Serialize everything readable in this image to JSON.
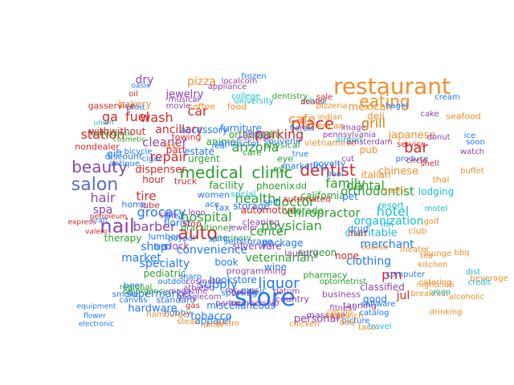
{
  "words": [
    {
      "text": "restaurant",
      "color": "#f28e2b"
    },
    {
      "text": "store",
      "color": "#1f77ff"
    },
    {
      "text": "eating",
      "color": "#f28e2b"
    },
    {
      "text": "salon",
      "color": "#5a6acf"
    },
    {
      "text": "medical",
      "color": "#2ca02c"
    },
    {
      "text": "clinic",
      "color": "#2ca02c"
    },
    {
      "text": "beauty",
      "color": "#8e44ad"
    },
    {
      "text": "place",
      "color": "#d62728"
    },
    {
      "text": "nail",
      "color": "#8e44ad"
    },
    {
      "text": "auto",
      "color": "#d62728"
    },
    {
      "text": "grill",
      "color": "#e07b00"
    },
    {
      "text": "dentist",
      "color": "#d62728"
    },
    {
      "text": "liquor",
      "color": "#1f77ff"
    },
    {
      "text": "wash",
      "color": "#d62728"
    },
    {
      "text": "fuel",
      "color": "#d62728"
    },
    {
      "text": "ga",
      "color": "#d62728"
    },
    {
      "text": "bar",
      "color": "#d62728"
    },
    {
      "text": "physician",
      "color": "#2ca02c"
    },
    {
      "text": "hotel",
      "color": "#17becf"
    },
    {
      "text": "cafe",
      "color": "#f28e2b"
    },
    {
      "text": "car",
      "color": "#d62728"
    },
    {
      "text": "dry",
      "color": "#8e44ad"
    },
    {
      "text": "pizza",
      "color": "#f28e2b"
    },
    {
      "text": "jewelry",
      "color": "#8e44ad"
    },
    {
      "text": "station",
      "color": "#d62728"
    },
    {
      "text": "cleaner",
      "color": "#8e44ad"
    },
    {
      "text": "repair",
      "color": "#d62728"
    },
    {
      "text": "hair",
      "color": "#8e44ad"
    },
    {
      "text": "spa",
      "color": "#8e44ad"
    },
    {
      "text": "barber",
      "color": "#8e44ad"
    },
    {
      "text": "grocery",
      "color": "#1f77ff"
    },
    {
      "text": "tire",
      "color": "#d62728"
    },
    {
      "text": "health",
      "color": "#2ca02c"
    },
    {
      "text": "hospital",
      "color": "#2ca02c"
    },
    {
      "text": "doctor",
      "color": "#2ca02c"
    },
    {
      "text": "family",
      "color": "#2ca02c"
    },
    {
      "text": "arizona",
      "color": "#2ca02c"
    },
    {
      "text": "parking",
      "color": "#d62728"
    },
    {
      "text": "chiropractor",
      "color": "#2ca02c"
    },
    {
      "text": "orthodontist",
      "color": "#2ca02c"
    },
    {
      "text": "dental",
      "color": "#2ca02c"
    },
    {
      "text": "center",
      "color": "#2ca02c"
    },
    {
      "text": "market",
      "color": "#1f77ff"
    },
    {
      "text": "supply",
      "color": "#1f77ff"
    },
    {
      "text": "specialty",
      "color": "#1f77ff"
    },
    {
      "text": "convenience",
      "color": "#1f77ff"
    },
    {
      "text": "shop",
      "color": "#1f77ff"
    },
    {
      "text": "hardware",
      "color": "#1f77ff"
    },
    {
      "text": "supermarket",
      "color": "#1f77ff"
    },
    {
      "text": "clothing",
      "color": "#1f77ff"
    },
    {
      "text": "pm",
      "color": "#d62728"
    },
    {
      "text": "jul",
      "color": "#d62728"
    },
    {
      "text": "merchant",
      "color": "#1f77ff"
    },
    {
      "text": "organization",
      "color": "#17becf"
    },
    {
      "text": "charitable",
      "color": "#17becf"
    },
    {
      "text": "bakery",
      "color": "#f28e2b"
    },
    {
      "text": "coffee",
      "color": "#f28e2b"
    },
    {
      "text": "food",
      "color": "#f28e2b"
    },
    {
      "text": "mexican",
      "color": "#f28e2b"
    },
    {
      "text": "american",
      "color": "#f28e2b"
    },
    {
      "text": "chinese",
      "color": "#f28e2b"
    },
    {
      "text": "italian",
      "color": "#f28e2b"
    },
    {
      "text": "sushi",
      "color": "#f28e2b"
    },
    {
      "text": "thai",
      "color": "#f28e2b"
    },
    {
      "text": "buffet",
      "color": "#f28e2b"
    },
    {
      "text": "japanese",
      "color": "#f28e2b"
    },
    {
      "text": "seafood",
      "color": "#f28e2b"
    },
    {
      "text": "deli",
      "color": "#f28e2b"
    },
    {
      "text": "pub",
      "color": "#f28e2b"
    },
    {
      "text": "resort",
      "color": "#17becf"
    },
    {
      "text": "lodging",
      "color": "#17becf"
    },
    {
      "text": "motel",
      "color": "#17becf"
    },
    {
      "text": "inn",
      "color": "#17becf"
    },
    {
      "text": "golf",
      "color": "#f28e2b"
    },
    {
      "text": "club",
      "color": "#f28e2b"
    },
    {
      "text": "course",
      "color": "#f28e2b"
    },
    {
      "text": "theater",
      "color": "#f28e2b"
    },
    {
      "text": "computer",
      "color": "#1f77ff"
    },
    {
      "text": "classified",
      "color": "#8e44ad"
    },
    {
      "text": "good",
      "color": "#1f77ff"
    },
    {
      "text": "personal",
      "color": "#8e44ad"
    },
    {
      "text": "business",
      "color": "#8e44ad"
    },
    {
      "text": "pharmacy",
      "color": "#2ca02c"
    },
    {
      "text": "optometrist",
      "color": "#2ca02c"
    },
    {
      "text": "veterinarian",
      "color": "#2ca02c"
    },
    {
      "text": "veterinary",
      "color": "#2ca02c"
    },
    {
      "text": "practitioner",
      "color": "#2ca02c"
    },
    {
      "text": "care",
      "color": "#2ca02c"
    },
    {
      "text": "storage",
      "color": "#1f77ff"
    },
    {
      "text": "self",
      "color": "#1f77ff"
    },
    {
      "text": "selfstorage",
      "color": "#1f77ff"
    },
    {
      "text": "automotive",
      "color": "#d62728"
    },
    {
      "text": "automated",
      "color": "#d62728"
    },
    {
      "text": "dispenser",
      "color": "#d62728"
    },
    {
      "text": "ancillary",
      "color": "#d62728"
    },
    {
      "text": "gasservice",
      "color": "#d62728"
    },
    {
      "text": "withwithout",
      "color": "#d62728"
    },
    {
      "text": "nondealer",
      "color": "#d62728"
    },
    {
      "text": "gift",
      "color": "#1f77ff"
    },
    {
      "text": "hour",
      "color": "#d62728"
    },
    {
      "text": "fast",
      "color": "#f28e2b"
    },
    {
      "text": "part",
      "color": "#d62728"
    },
    {
      "text": "accessory",
      "color": "#1f77ff"
    },
    {
      "text": "furniture",
      "color": "#1f77ff"
    },
    {
      "text": "florist",
      "color": "#1f77ff"
    },
    {
      "text": "book",
      "color": "#1f77ff"
    },
    {
      "text": "wine",
      "color": "#1f77ff"
    },
    {
      "text": "beer",
      "color": "#1f77ff"
    },
    {
      "text": "package",
      "color": "#1f77ff"
    },
    {
      "text": "miscellaneous",
      "color": "#1f77ff"
    },
    {
      "text": "tobacco",
      "color": "#1f77ff"
    },
    {
      "text": "apparel",
      "color": "#1f77ff"
    },
    {
      "text": "bookstore",
      "color": "#1f77ff"
    },
    {
      "text": "sporting",
      "color": "#1f77ff"
    },
    {
      "text": "hobby",
      "color": "#1f77ff"
    },
    {
      "text": "music",
      "color": "#1f77ff"
    },
    {
      "text": "none",
      "color": "#d62728"
    },
    {
      "text": "fitness",
      "color": "#8e44ad"
    },
    {
      "text": "tanning",
      "color": "#8e44ad"
    },
    {
      "text": "massage",
      "color": "#8e44ad"
    },
    {
      "text": "surgeon",
      "color": "#2ca02c"
    },
    {
      "text": "pediatric",
      "color": "#2ca02c"
    },
    {
      "text": "therapy",
      "color": "#2ca02c"
    },
    {
      "text": "urgent",
      "color": "#2ca02c"
    },
    {
      "text": "orthopedic",
      "color": "#2ca02c"
    },
    {
      "text": "physical",
      "color": "#2ca02c"
    },
    {
      "text": "animal",
      "color": "#2ca02c"
    },
    {
      "text": "eye",
      "color": "#2ca02c"
    },
    {
      "text": "facility",
      "color": "#2ca02c"
    },
    {
      "text": "social",
      "color": "#17becf"
    },
    {
      "text": "california",
      "color": "#2ca02c"
    },
    {
      "text": "colorado",
      "color": "#2ca02c"
    },
    {
      "text": "phoenix",
      "color": "#2ca02c"
    },
    {
      "text": "dd",
      "color": "#2ca02c"
    },
    {
      "text": "md",
      "color": "#2ca02c"
    },
    {
      "text": "drug",
      "color": "#1f77ff"
    },
    {
      "text": "pet",
      "color": "#1f77ff"
    },
    {
      "text": "contractor",
      "color": "#1f77ff"
    },
    {
      "text": "women",
      "color": "#1f77ff"
    },
    {
      "text": "pool",
      "color": "#1f77ff"
    },
    {
      "text": "novelty",
      "color": "#1f77ff"
    },
    {
      "text": "souvenir",
      "color": "#1f77ff"
    },
    {
      "text": "cleaning",
      "color": "#8e44ad"
    },
    {
      "text": "silverware",
      "color": "#8e44ad"
    },
    {
      "text": "jeweler",
      "color": "#8e44ad"
    },
    {
      "text": "clock",
      "color": "#8e44ad"
    },
    {
      "text": "laundry",
      "color": "#8e44ad"
    },
    {
      "text": "skin",
      "color": "#8e44ad"
    },
    {
      "text": "stop",
      "color": "#d62728"
    },
    {
      "text": "truck",
      "color": "#d62728"
    },
    {
      "text": "lube",
      "color": "#d62728"
    },
    {
      "text": "estate",
      "color": "#1f77ff"
    },
    {
      "text": "real",
      "color": "#1f77ff"
    },
    {
      "text": "towing",
      "color": "#d62728"
    },
    {
      "text": "oil",
      "color": "#d62728"
    },
    {
      "text": "print",
      "color": "#1f77ff"
    },
    {
      "text": "antique",
      "color": "#1f77ff"
    },
    {
      "text": "discount",
      "color": "#1f77ff"
    },
    {
      "text": "cigar",
      "color": "#1f77ff"
    },
    {
      "text": "bicycle",
      "color": "#1f77ff"
    },
    {
      "text": "home",
      "color": "#1f77ff"
    },
    {
      "text": "misc",
      "color": "#1f77ff"
    },
    {
      "text": "paypal",
      "color": "#1f77ff"
    },
    {
      "text": "tax",
      "color": "#1f77ff"
    },
    {
      "text": "ace",
      "color": "#1f77ff"
    },
    {
      "text": "spirit",
      "color": "#1f77ff"
    },
    {
      "text": "lumber",
      "color": "#1f77ff"
    },
    {
      "text": "feed",
      "color": "#1f77ff"
    },
    {
      "text": "outdoor",
      "color": "#1f77ff"
    },
    {
      "text": "standard",
      "color": "#1f77ff"
    },
    {
      "text": "google",
      "color": "#8e44ad"
    },
    {
      "text": "googlecom",
      "color": "#8e44ad"
    },
    {
      "text": "magazine",
      "color": "#8e44ad"
    },
    {
      "text": "athletic",
      "color": "#8e44ad"
    },
    {
      "text": "membership",
      "color": "#8e44ad"
    },
    {
      "text": "programming",
      "color": "#8e44ad"
    },
    {
      "text": "rec",
      "color": "#8e44ad"
    },
    {
      "text": "country",
      "color": "#8e44ad"
    },
    {
      "text": "datum",
      "color": "#8e44ad"
    },
    {
      "text": "hamburger",
      "color": "#f28e2b"
    },
    {
      "text": "steak",
      "color": "#f28e2b"
    },
    {
      "text": "bistro",
      "color": "#f28e2b"
    },
    {
      "text": "diner",
      "color": "#f28e2b"
    },
    {
      "text": "chicken",
      "color": "#f28e2b"
    },
    {
      "text": "sandwich",
      "color": "#f28e2b"
    },
    {
      "text": "taco",
      "color": "#f28e2b"
    },
    {
      "text": "breakfast",
      "color": "#f28e2b"
    },
    {
      "text": "catering",
      "color": "#f28e2b"
    },
    {
      "text": "kitchen",
      "color": "#f28e2b"
    },
    {
      "text": "lounge",
      "color": "#f28e2b"
    },
    {
      "text": "bbq",
      "color": "#f28e2b"
    },
    {
      "text": "nightclub",
      "color": "#f28e2b"
    },
    {
      "text": "drinking",
      "color": "#f28e2b"
    },
    {
      "text": "beverage",
      "color": "#f28e2b"
    },
    {
      "text": "alcoholic",
      "color": "#f28e2b"
    },
    {
      "text": "vietnamese",
      "color": "#f28e2b"
    },
    {
      "text": "indian",
      "color": "#f28e2b"
    },
    {
      "text": "pizzeria",
      "color": "#f28e2b"
    },
    {
      "text": "airport",
      "color": "#17becf"
    },
    {
      "text": "school",
      "color": "#17becf"
    },
    {
      "text": "university",
      "color": "#17becf"
    },
    {
      "text": "college",
      "color": "#17becf"
    },
    {
      "text": "dentistry",
      "color": "#2ca02c"
    },
    {
      "text": "sale",
      "color": "#d62728"
    },
    {
      "text": "dealer",
      "color": "#d62728"
    },
    {
      "text": "service",
      "color": "#d62728"
    },
    {
      "text": "cake",
      "color": "#8e44ad"
    },
    {
      "text": "donut",
      "color": "#8e44ad"
    },
    {
      "text": "watch",
      "color": "#8e44ad"
    },
    {
      "text": "soon",
      "color": "#1f77ff"
    },
    {
      "text": "ice",
      "color": "#1f77ff"
    },
    {
      "text": "cream",
      "color": "#1f77ff"
    },
    {
      "text": "bagel",
      "color": "#1f77ff"
    },
    {
      "text": "frozen",
      "color": "#1f77ff"
    },
    {
      "text": "pennsylvania",
      "color": "#8e44ad"
    },
    {
      "text": "amsterdam",
      "color": "#8e44ad"
    },
    {
      "text": "image",
      "color": "#8e44ad"
    },
    {
      "text": "cut",
      "color": "#8e44ad"
    },
    {
      "text": "produce",
      "color": "#1f77ff"
    },
    {
      "text": "florals",
      "color": "#1f77ff"
    },
    {
      "text": "marketing",
      "color": "#1f77ff"
    },
    {
      "text": "true",
      "color": "#1f77ff"
    },
    {
      "text": "oasis",
      "color": "#1f77ff"
    },
    {
      "text": "movie",
      "color": "#8e44ad"
    },
    {
      "text": "musical",
      "color": "#8e44ad"
    },
    {
      "text": "appliance",
      "color": "#8e44ad"
    },
    {
      "text": "piano",
      "color": "#8e44ad"
    },
    {
      "text": "exercise",
      "color": "#8e44ad"
    },
    {
      "text": "localcom",
      "color": "#8e44ad"
    },
    {
      "text": "logo",
      "color": "#8e44ad"
    },
    {
      "text": "petroleum",
      "color": "#d62728"
    },
    {
      "text": "valero",
      "color": "#d62728"
    },
    {
      "text": "express",
      "color": "#d62728"
    },
    {
      "text": "craft",
      "color": "#1f77ff"
    },
    {
      "text": "smoke",
      "color": "#1f77ff"
    },
    {
      "text": "canvas",
      "color": "#1f77ff"
    },
    {
      "text": "equipment",
      "color": "#1f77ff"
    },
    {
      "text": "flower",
      "color": "#1f77ff"
    },
    {
      "text": "electronic",
      "color": "#1f77ff"
    },
    {
      "text": "software",
      "color": "#1f77ff"
    },
    {
      "text": "catalog",
      "color": "#1f77ff"
    },
    {
      "text": "picture",
      "color": "#1f77ff"
    },
    {
      "text": "travel",
      "color": "#17becf"
    },
    {
      "text": "yoga",
      "color": "#17becf"
    },
    {
      "text": "dist",
      "color": "#17becf"
    },
    {
      "text": "credit",
      "color": "#17becf"
    },
    {
      "text": "union",
      "color": "#17becf"
    },
    {
      "text": "orthodontic",
      "color": "#2ca02c"
    },
    {
      "text": "cosmetic",
      "color": "#2ca02c"
    },
    {
      "text": "emergency",
      "color": "#2ca02c"
    },
    {
      "text": "regional",
      "color": "#2ca02c"
    },
    {
      "text": "sharp",
      "color": "#1f77ff"
    },
    {
      "text": "cosmetic",
      "color": "#8e44ad"
    },
    {
      "text": "gas",
      "color": "#d62728"
    },
    {
      "text": "parlor",
      "color": "#8e44ad"
    },
    {
      "text": "casino",
      "color": "#f28e2b"
    },
    {
      "text": "bbq",
      "color": "#f28e2b"
    },
    {
      "text": "tea",
      "color": "#f28e2b"
    },
    {
      "text": "mart",
      "color": "#d62728"
    },
    {
      "text": "circle",
      "color": "#d62728"
    },
    {
      "text": "shell",
      "color": "#d62728"
    }
  ]
}
